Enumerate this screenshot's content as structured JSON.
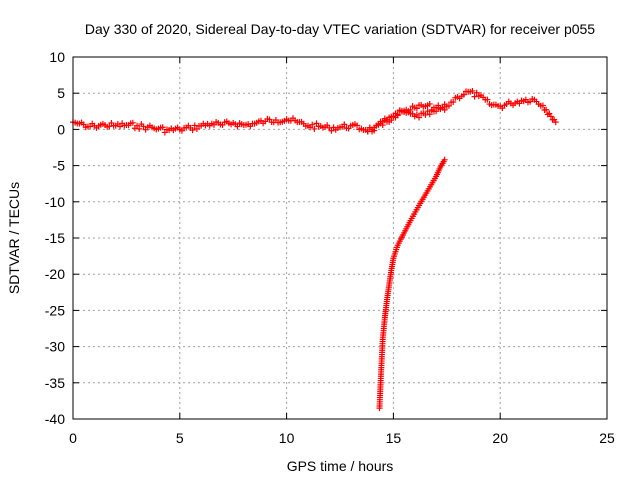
{
  "chart_data": {
    "type": "scatter",
    "title": "Day 330 of 2020, Sidereal Day-to-day VTEC variation (SDTVAR) for receiver p055",
    "xlabel": "GPS time / hours",
    "ylabel": "SDTVAR / TECUs",
    "xlim": [
      0,
      25
    ],
    "ylim": [
      -40,
      10
    ],
    "x_ticks": [
      "0",
      "5",
      "10",
      "15",
      "20",
      "25"
    ],
    "y_ticks": [
      "10",
      "5",
      "0",
      "-5",
      "-10",
      "-15",
      "-20",
      "-25",
      "-30",
      "-35",
      "-40"
    ],
    "grid": true,
    "marker": "plus",
    "color": "#ff0000",
    "series": [
      {
        "x": [
          0.0,
          0.3,
          0.6,
          1.0,
          1.5,
          2.0,
          2.5,
          3.0,
          3.5,
          4.0,
          4.5,
          5.0,
          5.5,
          6.0,
          6.5,
          7.0,
          7.5,
          8.0,
          8.5,
          9.0,
          9.5,
          10.0,
          10.5,
          11.0,
          11.5,
          12.0,
          12.5,
          13.0,
          13.5,
          14.0,
          14.5,
          15.0,
          15.5,
          16.0,
          16.5,
          17.0,
          17.5,
          18.0,
          18.5,
          19.0,
          19.5,
          20.0,
          20.5,
          21.0,
          21.5,
          22.0,
          22.3,
          22.6
        ],
        "y": [
          1.0,
          0.8,
          0.3,
          0.5,
          0.6,
          0.5,
          0.6,
          0.5,
          0.3,
          0.1,
          -0.1,
          0.0,
          0.2,
          0.5,
          0.8,
          0.6,
          0.9,
          0.6,
          0.8,
          1.1,
          1.3,
          1.4,
          1.0,
          0.5,
          0.4,
          0.2,
          0.3,
          0.5,
          0.1,
          0.0,
          0.6,
          1.8,
          2.4,
          1.8,
          2.0,
          2.5,
          3.2,
          4.5,
          5.2,
          4.6,
          3.5,
          3.2,
          3.6,
          4.0,
          4.2,
          3.3,
          2.2,
          1.0
        ]
      },
      {
        "x": [
          13.8,
          14.2,
          14.6,
          15.0,
          15.5,
          16.0,
          16.5,
          17.0,
          17.4
        ],
        "y": [
          -0.3,
          0.5,
          1.5,
          1.8,
          2.6,
          3.0,
          3.2,
          3.0,
          2.7
        ]
      },
      {
        "x": [
          14.35,
          14.4,
          14.45,
          14.5,
          14.6,
          14.7,
          14.8,
          14.9,
          15.0,
          15.2,
          15.5,
          15.8,
          16.2,
          16.6,
          17.0,
          17.2,
          17.4
        ],
        "y": [
          -38.5,
          -35.0,
          -32.0,
          -29.0,
          -26.0,
          -23.5,
          -21.5,
          -19.5,
          -17.8,
          -16.0,
          -14.3,
          -12.6,
          -10.5,
          -8.5,
          -6.5,
          -5.2,
          -4.2
        ]
      }
    ]
  }
}
